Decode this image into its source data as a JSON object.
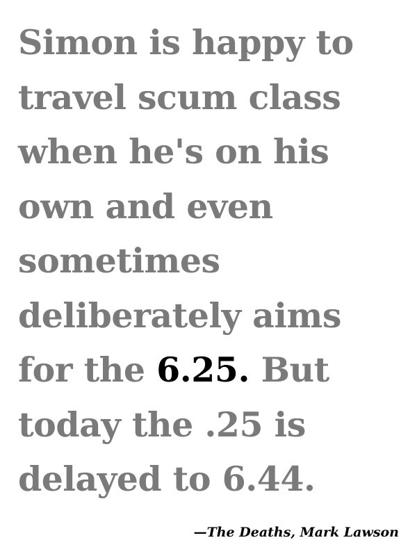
{
  "quote": {
    "lines": [
      {
        "before": "Simon is happy to",
        "highlight": "",
        "after": ""
      },
      {
        "before": "travel scum class",
        "highlight": "",
        "after": ""
      },
      {
        "before": "when he's on his",
        "highlight": "",
        "after": ""
      },
      {
        "before": "own and even",
        "highlight": "",
        "after": ""
      },
      {
        "before": "sometimes",
        "highlight": "",
        "after": ""
      },
      {
        "before": "deliberately aims",
        "highlight": "",
        "after": ""
      },
      {
        "before": "for the ",
        "highlight": "6.25.",
        "after": " But"
      },
      {
        "before": "today the .25 is",
        "highlight": "",
        "after": ""
      },
      {
        "before": "delayed to 6.44.",
        "highlight": "",
        "after": ""
      }
    ],
    "attribution": "—The Deaths, Mark Lawson"
  },
  "colors": {
    "text": "#7a7a7a",
    "highlight": "#000000",
    "background": "#ffffff"
  }
}
